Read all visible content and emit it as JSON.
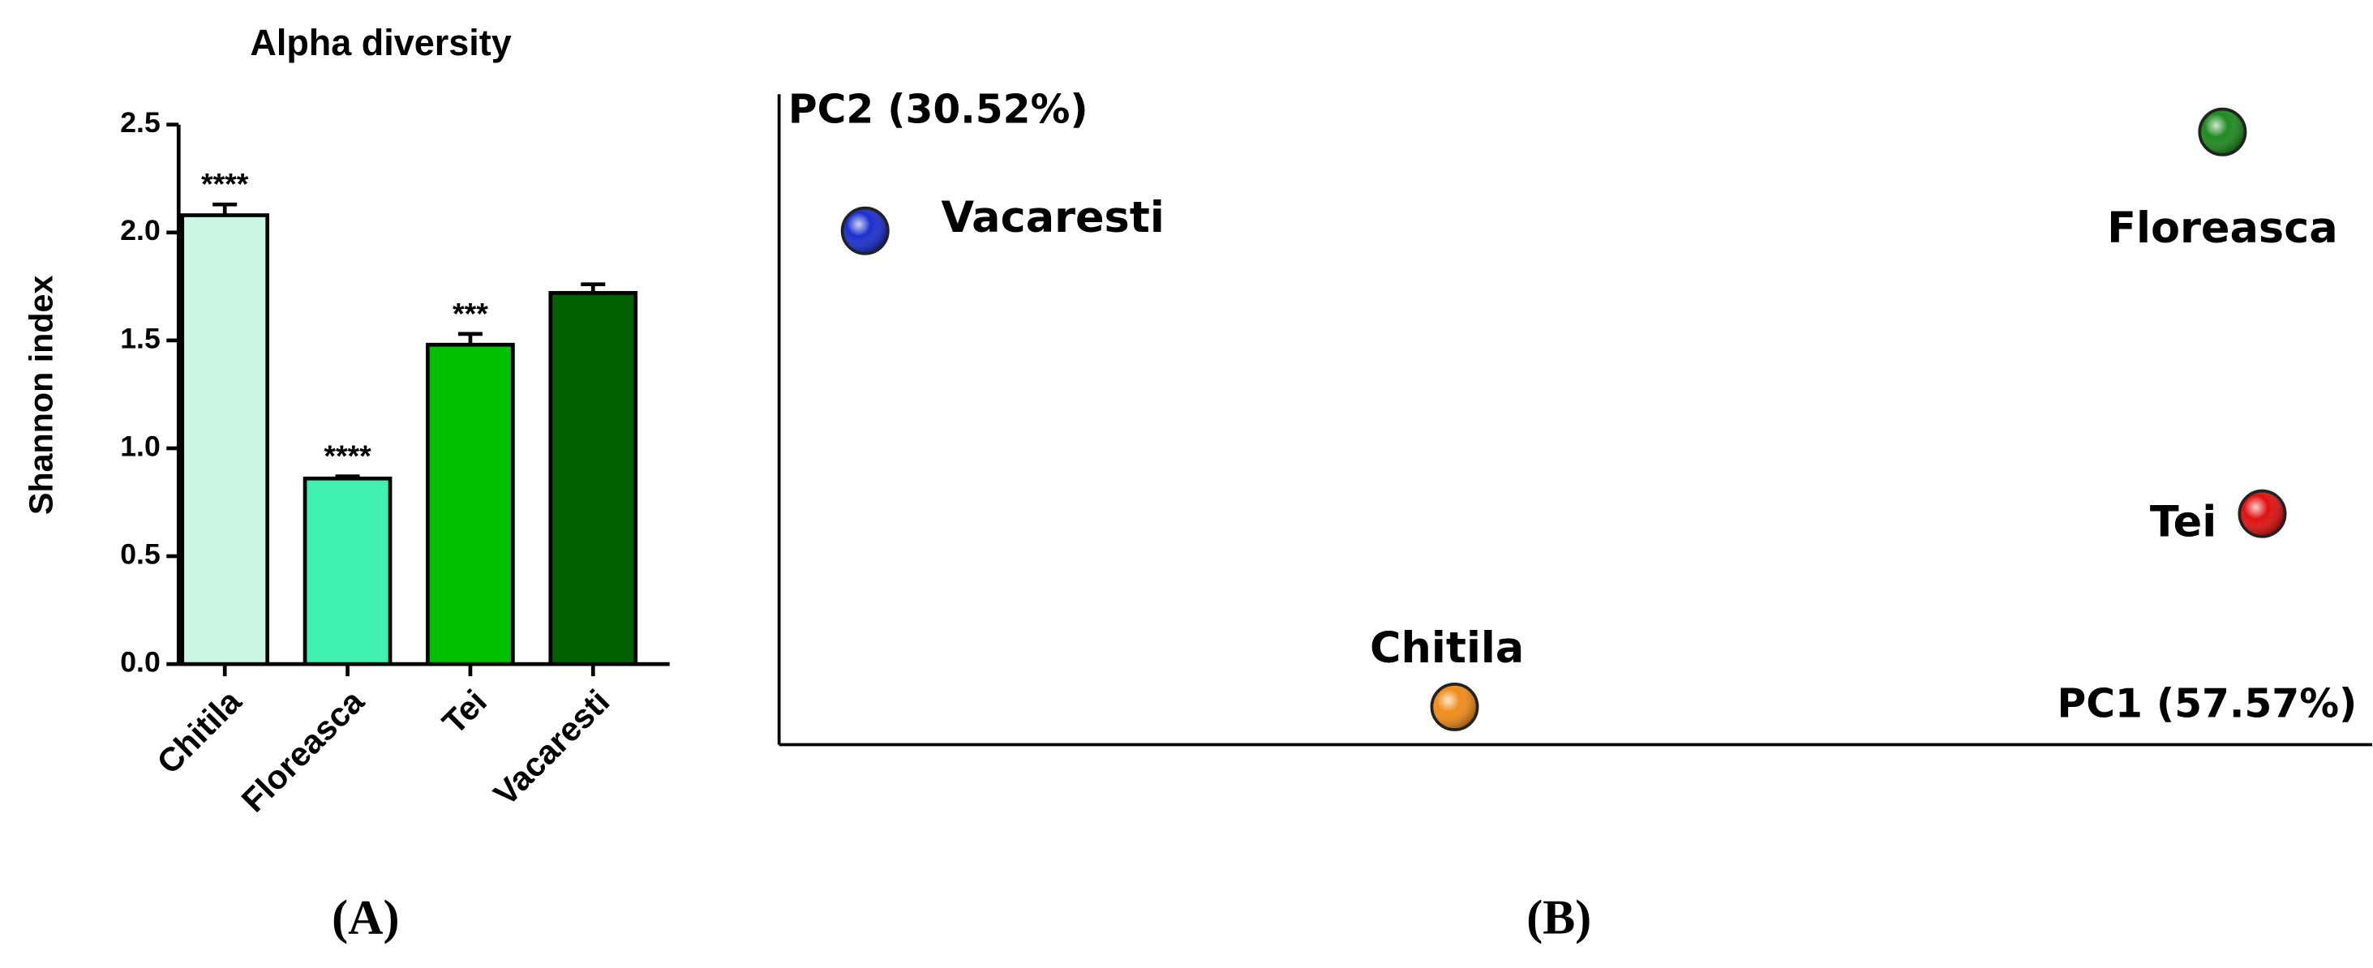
{
  "chart_data": [
    {
      "type": "bar",
      "title": "Alpha diversity",
      "ylabel": "Shannon index",
      "categories": [
        "Chitila",
        "Floreasca",
        "Tei",
        "Vacaresti"
      ],
      "values": [
        2.08,
        0.86,
        1.48,
        1.72
      ],
      "errors": [
        0.05,
        0.01,
        0.05,
        0.04
      ],
      "annotations": [
        "****",
        "****",
        "***",
        null
      ],
      "colors": [
        "#ccf7e6",
        "#40f0b0",
        "#00c000",
        "#006000"
      ],
      "ylim": [
        0,
        2.5
      ],
      "yticks": [
        {
          "value": 0,
          "label": "0.0"
        },
        0.5,
        {
          "value": 1,
          "label": "1.0"
        },
        1.5,
        {
          "value": 2,
          "label": "2.0"
        },
        2.5
      ],
      "panel_label": "(A)"
    },
    {
      "type": "scatter",
      "xlabel": "PC1 (57.57%)",
      "ylabel": "PC2 (30.52%)",
      "points": [
        {
          "name": "Vacaresti",
          "color": "#1a2fcf",
          "x": 5.4,
          "y": 79.0
        },
        {
          "name": "Floreasca",
          "color": "#1e8a1e",
          "x": 90.6,
          "y": 94.2
        },
        {
          "name": "Tei",
          "color": "#e01010",
          "x": 93.1,
          "y": 35.5
        },
        {
          "name": "Chitila",
          "color": "#f08c1a",
          "x": 42.4,
          "y": 5.8
        }
      ],
      "xlim": [
        0,
        100
      ],
      "ylim": [
        0,
        100
      ],
      "panel_label": "(B)"
    }
  ]
}
